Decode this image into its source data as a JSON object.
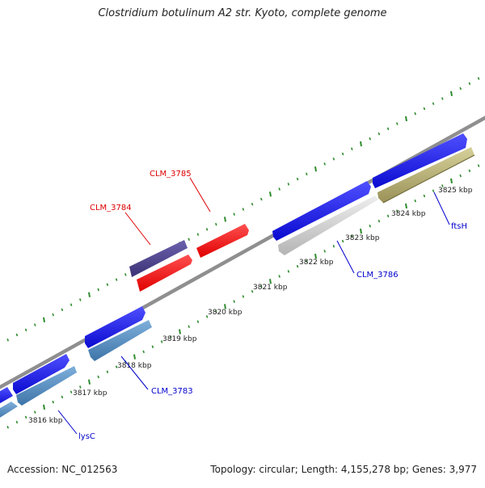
{
  "title": "Clostridium botulinum A2 str. Kyoto, complete genome",
  "footer": {
    "accession": "Accession: NC_012563",
    "summary": "Topology: circular; Length: 4,155,278 bp; Genes: 3,977"
  },
  "colors": {
    "backbone": "#8a8a8a",
    "ticks": "#2e8b2e",
    "forward_gene": "#1515e8",
    "reverse_gene": "#4f86b8",
    "label_red": "#dd0000",
    "label_blue": "#0000cc",
    "gene_red": "#ff0d0d",
    "gene_purple": "#4a3f8a",
    "gene_gray": "#c8c8c8",
    "gene_olive": "#b5ad72"
  },
  "scale_labels": [
    "3816 kbp",
    "3817 kbp",
    "3818 kbp",
    "3819 kbp",
    "3820 kbp",
    "3821 kbp",
    "3822 kbp",
    "3823 kbp",
    "3824 kbp",
    "3825 kbp"
  ],
  "gene_labels": [
    {
      "id": "lysC",
      "label": "lysC",
      "color": "blue"
    },
    {
      "id": "clm3783",
      "label": "CLM_3783",
      "color": "blue"
    },
    {
      "id": "clm3784",
      "label": "CLM_3784",
      "color": "red"
    },
    {
      "id": "clm3785",
      "label": "CLM_3785",
      "color": "red"
    },
    {
      "id": "clm3786",
      "label": "CLM_3786",
      "color": "blue"
    },
    {
      "id": "ftsH",
      "label": "ftsH",
      "color": "blue"
    }
  ]
}
